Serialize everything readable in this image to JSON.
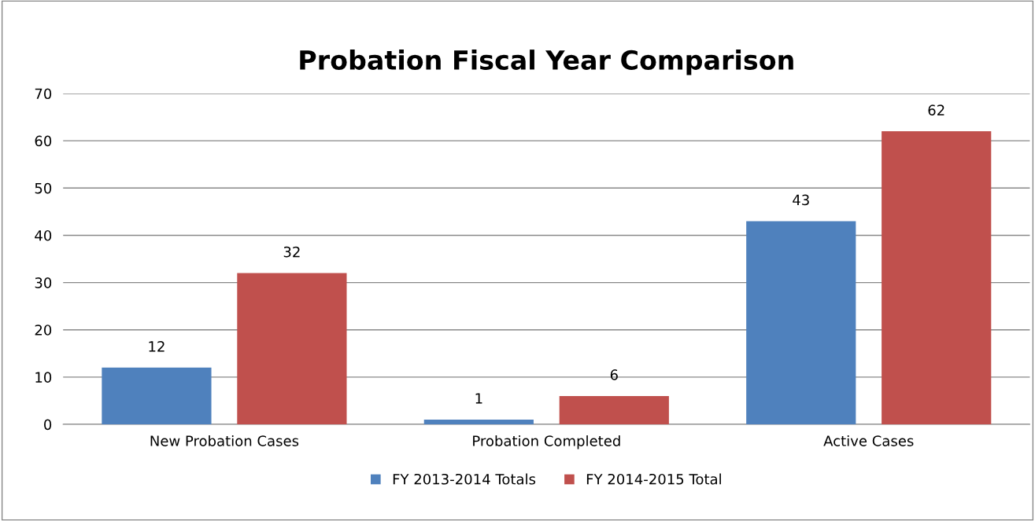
{
  "chart_data": {
    "type": "bar",
    "title": "Probation Fiscal Year Comparison",
    "categories": [
      "New Probation Cases",
      "Probation Completed",
      "Active Cases"
    ],
    "series": [
      {
        "name": "FY 2013-2014 Totals",
        "color": "#4f81bd",
        "values": [
          12,
          1,
          43
        ]
      },
      {
        "name": "FY 2014-2015 Total",
        "color": "#c0504d",
        "values": [
          32,
          6,
          62
        ]
      }
    ],
    "ylim": [
      0,
      70
    ],
    "yticks": [
      0,
      10,
      20,
      30,
      40,
      50,
      60,
      70
    ],
    "grid": "y",
    "legend": "bottom",
    "data_labels": true
  }
}
